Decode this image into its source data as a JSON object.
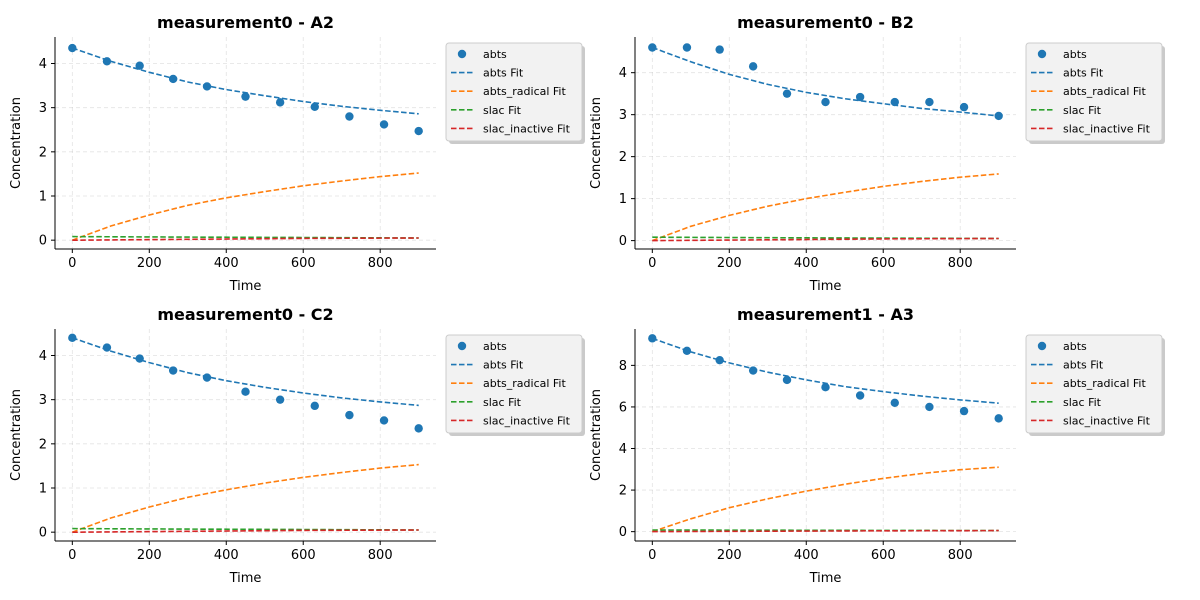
{
  "chart_data": [
    {
      "type": "scatter",
      "title": "measurement0 - A2",
      "xlabel": "Time",
      "ylabel": "Concentration",
      "xlim": [
        -45,
        945
      ],
      "ylim": [
        -0.2,
        4.6
      ],
      "xticks": [
        0,
        200,
        400,
        600,
        800
      ],
      "yticks": [
        0,
        1,
        2,
        3,
        4
      ],
      "grid": true,
      "legend_position": "outside-right",
      "legend": [
        "abts",
        "abts Fit",
        "abts_radical Fit",
        "slac Fit",
        "slac_inactive Fit"
      ],
      "series": [
        {
          "name": "abts",
          "kind": "points",
          "color": "#1f77b4",
          "x": [
            0,
            90,
            175,
            262,
            350,
            450,
            540,
            630,
            720,
            810,
            900
          ],
          "y": [
            4.35,
            4.05,
            3.95,
            3.65,
            3.48,
            3.25,
            3.12,
            3.02,
            2.8,
            2.62,
            2.47
          ]
        },
        {
          "name": "abts Fit",
          "kind": "dashed",
          "color": "#1f77b4",
          "x": [
            0,
            100,
            200,
            300,
            400,
            500,
            600,
            700,
            800,
            900
          ],
          "y": [
            4.35,
            4.05,
            3.8,
            3.58,
            3.41,
            3.27,
            3.14,
            3.03,
            2.94,
            2.86
          ]
        },
        {
          "name": "abts_radical Fit",
          "kind": "dashed",
          "color": "#ff7f0e",
          "x": [
            0,
            100,
            200,
            300,
            400,
            500,
            600,
            700,
            800,
            900
          ],
          "y": [
            0.0,
            0.32,
            0.57,
            0.79,
            0.96,
            1.1,
            1.23,
            1.34,
            1.44,
            1.52
          ]
        },
        {
          "name": "slac Fit",
          "kind": "dashed",
          "color": "#2ca02c",
          "x": [
            0,
            300,
            600,
            900
          ],
          "y": [
            0.08,
            0.07,
            0.06,
            0.05
          ]
        },
        {
          "name": "slac_inactive Fit",
          "kind": "dashed",
          "color": "#d62728",
          "x": [
            0,
            300,
            600,
            900
          ],
          "y": [
            0.0,
            0.02,
            0.04,
            0.05
          ]
        }
      ]
    },
    {
      "type": "scatter",
      "title": "measurement0 - B2",
      "xlabel": "Time",
      "ylabel": "Concentration",
      "xlim": [
        -45,
        945
      ],
      "ylim": [
        -0.2,
        4.85
      ],
      "xticks": [
        0,
        200,
        400,
        600,
        800
      ],
      "yticks": [
        0,
        1,
        2,
        3,
        4
      ],
      "grid": true,
      "legend_position": "outside-right",
      "legend": [
        "abts",
        "abts Fit",
        "abts_radical Fit",
        "slac Fit",
        "slac_inactive Fit"
      ],
      "series": [
        {
          "name": "abts",
          "kind": "points",
          "color": "#1f77b4",
          "x": [
            0,
            90,
            175,
            262,
            350,
            450,
            540,
            630,
            720,
            810,
            900
          ],
          "y": [
            4.6,
            4.6,
            4.55,
            4.15,
            3.5,
            3.3,
            3.42,
            3.3,
            3.3,
            3.18,
            2.97
          ]
        },
        {
          "name": "abts Fit",
          "kind": "dashed",
          "color": "#1f77b4",
          "x": [
            0,
            100,
            200,
            300,
            400,
            500,
            600,
            700,
            800,
            900
          ],
          "y": [
            4.6,
            4.26,
            3.96,
            3.72,
            3.53,
            3.38,
            3.26,
            3.15,
            3.06,
            2.97
          ]
        },
        {
          "name": "abts_radical Fit",
          "kind": "dashed",
          "color": "#ff7f0e",
          "x": [
            0,
            100,
            200,
            300,
            400,
            500,
            600,
            700,
            800,
            900
          ],
          "y": [
            0.0,
            0.34,
            0.6,
            0.82,
            1.0,
            1.15,
            1.29,
            1.41,
            1.51,
            1.59
          ]
        },
        {
          "name": "slac Fit",
          "kind": "dashed",
          "color": "#2ca02c",
          "x": [
            0,
            300,
            600,
            900
          ],
          "y": [
            0.08,
            0.07,
            0.06,
            0.05
          ]
        },
        {
          "name": "slac_inactive Fit",
          "kind": "dashed",
          "color": "#d62728",
          "x": [
            0,
            300,
            600,
            900
          ],
          "y": [
            0.0,
            0.02,
            0.04,
            0.05
          ]
        }
      ]
    },
    {
      "type": "scatter",
      "title": "measurement0 - C2",
      "xlabel": "Time",
      "ylabel": "Concentration",
      "xlim": [
        -45,
        945
      ],
      "ylim": [
        -0.2,
        4.6
      ],
      "xticks": [
        0,
        200,
        400,
        600,
        800
      ],
      "yticks": [
        0,
        1,
        2,
        3,
        4
      ],
      "grid": true,
      "legend_position": "outside-right",
      "legend": [
        "abts",
        "abts Fit",
        "abts_radical Fit",
        "slac Fit",
        "slac_inactive Fit"
      ],
      "series": [
        {
          "name": "abts",
          "kind": "points",
          "color": "#1f77b4",
          "x": [
            0,
            90,
            175,
            262,
            350,
            450,
            540,
            630,
            720,
            810,
            900
          ],
          "y": [
            4.4,
            4.18,
            3.93,
            3.66,
            3.5,
            3.18,
            3.0,
            2.86,
            2.65,
            2.53,
            2.35
          ]
        },
        {
          "name": "abts Fit",
          "kind": "dashed",
          "color": "#1f77b4",
          "x": [
            0,
            100,
            200,
            300,
            400,
            500,
            600,
            700,
            800,
            900
          ],
          "y": [
            4.4,
            4.1,
            3.84,
            3.61,
            3.43,
            3.28,
            3.15,
            3.04,
            2.95,
            2.87
          ]
        },
        {
          "name": "abts_radical Fit",
          "kind": "dashed",
          "color": "#ff7f0e",
          "x": [
            0,
            100,
            200,
            300,
            400,
            500,
            600,
            700,
            800,
            900
          ],
          "y": [
            0.0,
            0.32,
            0.57,
            0.79,
            0.96,
            1.11,
            1.24,
            1.35,
            1.45,
            1.53
          ]
        },
        {
          "name": "slac Fit",
          "kind": "dashed",
          "color": "#2ca02c",
          "x": [
            0,
            300,
            600,
            900
          ],
          "y": [
            0.08,
            0.07,
            0.06,
            0.05
          ]
        },
        {
          "name": "slac_inactive Fit",
          "kind": "dashed",
          "color": "#d62728",
          "x": [
            0,
            300,
            600,
            900
          ],
          "y": [
            0.0,
            0.02,
            0.04,
            0.05
          ]
        }
      ]
    },
    {
      "type": "scatter",
      "title": "measurement1 - A3",
      "xlabel": "Time",
      "ylabel": "Concentration",
      "xlim": [
        -45,
        945
      ],
      "ylim": [
        -0.45,
        9.75
      ],
      "xticks": [
        0,
        200,
        400,
        600,
        800
      ],
      "yticks": [
        0,
        2,
        4,
        6,
        8
      ],
      "grid": true,
      "legend_position": "outside-right",
      "legend": [
        "abts",
        "abts Fit",
        "abts_radical Fit",
        "slac Fit",
        "slac_inactive Fit"
      ],
      "series": [
        {
          "name": "abts",
          "kind": "points",
          "color": "#1f77b4",
          "x": [
            0,
            90,
            175,
            262,
            350,
            450,
            540,
            630,
            720,
            810,
            900
          ],
          "y": [
            9.3,
            8.7,
            8.25,
            7.75,
            7.3,
            6.95,
            6.55,
            6.2,
            6.0,
            5.8,
            5.45
          ]
        },
        {
          "name": "abts Fit",
          "kind": "dashed",
          "color": "#1f77b4",
          "x": [
            0,
            100,
            200,
            300,
            400,
            500,
            600,
            700,
            800,
            900
          ],
          "y": [
            9.3,
            8.65,
            8.12,
            7.67,
            7.3,
            6.98,
            6.74,
            6.52,
            6.34,
            6.18
          ]
        },
        {
          "name": "abts_radical Fit",
          "kind": "dashed",
          "color": "#ff7f0e",
          "x": [
            0,
            100,
            200,
            300,
            400,
            500,
            600,
            700,
            800,
            900
          ],
          "y": [
            0.0,
            0.62,
            1.15,
            1.58,
            1.95,
            2.28,
            2.56,
            2.8,
            2.98,
            3.1
          ]
        },
        {
          "name": "slac Fit",
          "kind": "dashed",
          "color": "#2ca02c",
          "x": [
            0,
            300,
            600,
            900
          ],
          "y": [
            0.08,
            0.07,
            0.06,
            0.05
          ]
        },
        {
          "name": "slac_inactive Fit",
          "kind": "dashed",
          "color": "#d62728",
          "x": [
            0,
            300,
            600,
            900
          ],
          "y": [
            0.0,
            0.02,
            0.04,
            0.05
          ]
        }
      ]
    }
  ]
}
